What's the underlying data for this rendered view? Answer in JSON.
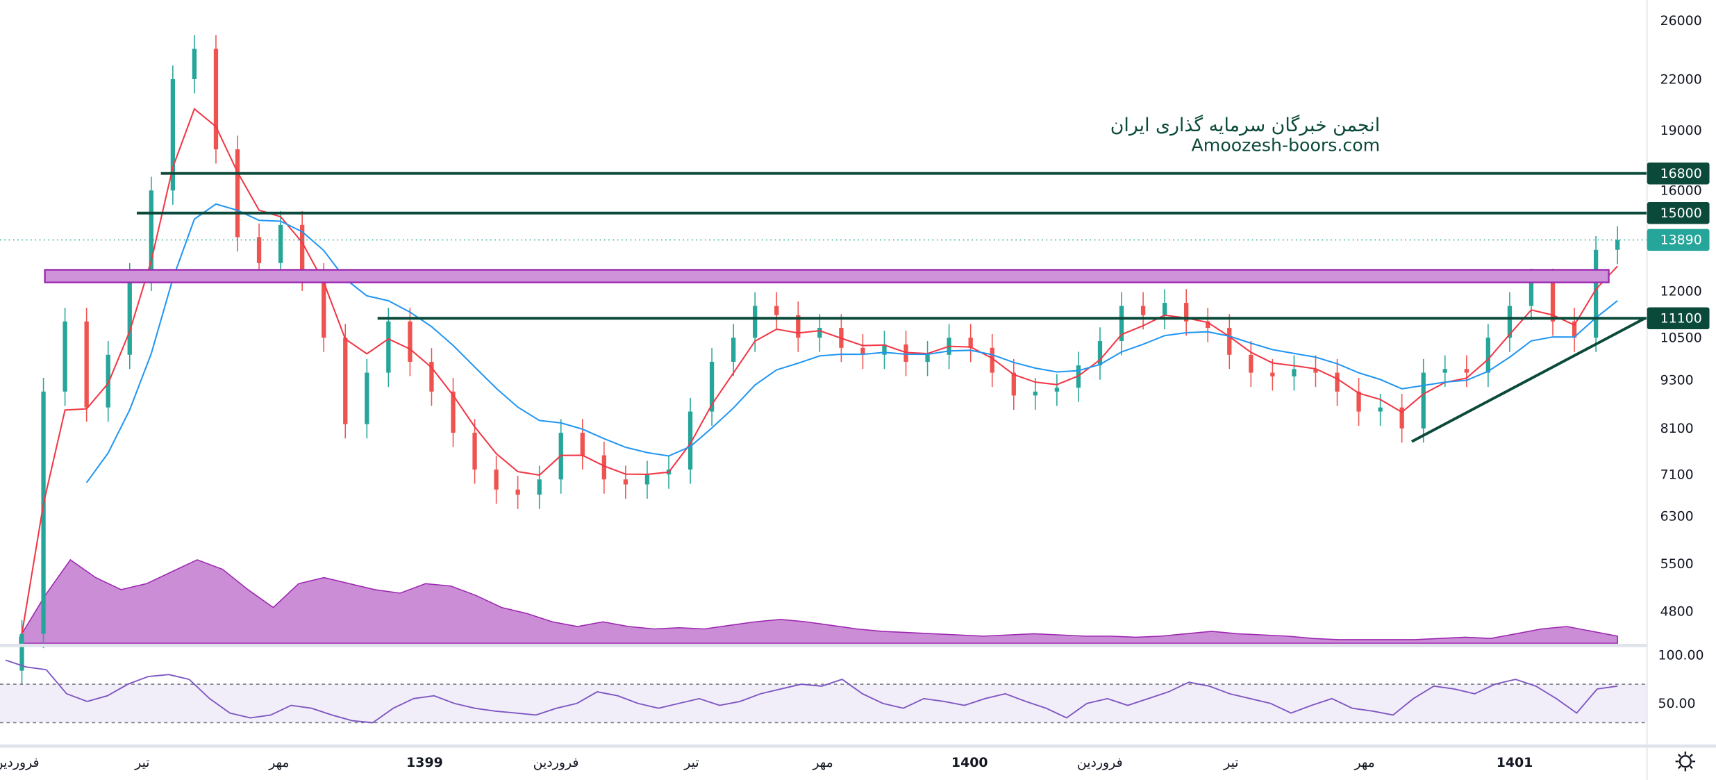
{
  "chart_data": {
    "type": "candlestick",
    "scale": "log",
    "watermark": {
      "line1": "انجمن خبرگان سرمایه گذاری ایران",
      "line2": "Amoozesh-boors.com"
    },
    "price_axis_ticks": [
      26000,
      22000,
      19000,
      16000,
      12000,
      10500,
      9300,
      8100,
      7100,
      6300,
      5500,
      4800
    ],
    "price_axis_tick_labels": [
      "26000",
      "22000",
      "19000",
      "16000",
      "12000",
      "10500",
      "9300",
      "8100",
      "7100",
      "6300",
      "5500",
      "4800"
    ],
    "last_price": {
      "value": 13890,
      "label": "13890",
      "color": "#26a69a"
    },
    "levels": [
      {
        "value": 16800,
        "label": "16800",
        "color": "#0b4a3a"
      },
      {
        "value": 15000,
        "label": "15000",
        "color": "#0b4a3a"
      },
      {
        "value": 11100,
        "label": "11100",
        "color": "#0b4a3a"
      }
    ],
    "zone": {
      "from": 12300,
      "to": 12750,
      "color": "#ce93d8",
      "border": "#9c27b0"
    },
    "trendline": {
      "from_price": 7800,
      "to_price": 11100
    },
    "closes": [
      4500,
      9000,
      11000,
      8600,
      10000,
      12500,
      16000,
      22000,
      24000,
      18000,
      14000,
      13000,
      14500,
      12500,
      10500,
      8200,
      9500,
      11000,
      9800,
      9000,
      8000,
      7200,
      6800,
      6700,
      7000,
      8000,
      7500,
      7000,
      6900,
      7100,
      7200,
      8500,
      9800,
      10500,
      11500,
      11200,
      10500,
      10800,
      10200,
      10000,
      10300,
      9800,
      10000,
      10500,
      10200,
      9500,
      8900,
      9000,
      9100,
      9700,
      10400,
      11500,
      11200,
      11600,
      11000,
      10800,
      10000,
      9500,
      9400,
      9600,
      9500,
      9000,
      8500,
      8600,
      8100,
      9500,
      9600,
      9500,
      10500,
      11500,
      12300,
      11000,
      10500,
      13500,
      13890
    ],
    "ma_fast_color": "#f23645",
    "ma_slow_color": "#2196f3",
    "volume_ma": [
      5,
      40,
      70,
      55,
      45,
      50,
      60,
      70,
      62,
      45,
      30,
      50,
      55,
      50,
      45,
      42,
      50,
      48,
      40,
      30,
      25,
      18,
      14,
      18,
      14,
      12,
      13,
      12,
      15,
      18,
      20,
      18,
      15,
      12,
      10,
      9,
      8,
      7,
      6,
      7,
      8,
      7,
      6,
      6,
      5,
      6,
      8,
      10,
      8,
      7,
      6,
      4,
      3,
      3,
      3,
      3,
      4,
      5,
      4,
      8,
      12,
      14,
      10,
      6
    ],
    "volume_color": "#ba68c8",
    "rsi": {
      "values": [
        95,
        88,
        85,
        60,
        52,
        58,
        70,
        78,
        80,
        75,
        55,
        40,
        35,
        38,
        48,
        45,
        38,
        32,
        30,
        45,
        55,
        58,
        50,
        45,
        42,
        40,
        38,
        45,
        50,
        62,
        58,
        50,
        45,
        50,
        55,
        48,
        52,
        60,
        65,
        70,
        68,
        75,
        60,
        50,
        45,
        55,
        52,
        48,
        55,
        60,
        52,
        45,
        35,
        50,
        55,
        48,
        55,
        62,
        72,
        68,
        60,
        55,
        50,
        40,
        48,
        55,
        45,
        42,
        38,
        55,
        68,
        65,
        60,
        70,
        75,
        68,
        55,
        40,
        65,
        68
      ],
      "upper": 70,
      "lower": 30,
      "ticks": [
        "100.00",
        "50.00"
      ],
      "color": "#7e57c2"
    },
    "time_labels": [
      "فروردین",
      "تیر",
      "مهر",
      "1399",
      "فروردین",
      "تیر",
      "مهر",
      "1400",
      "فروردین",
      "تیر",
      "مهر",
      "1401"
    ],
    "time_label_bold": [
      false,
      false,
      false,
      true,
      false,
      false,
      false,
      true,
      false,
      false,
      false,
      true
    ]
  },
  "icons": {
    "settings": "gear-icon"
  }
}
